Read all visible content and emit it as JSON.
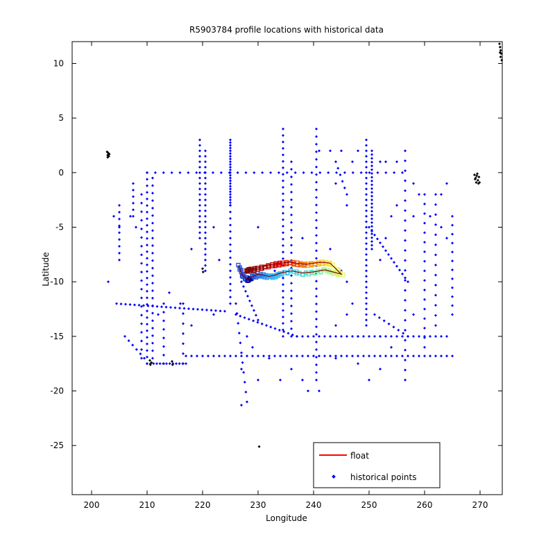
{
  "chart_data": {
    "type": "scatter",
    "title": "R5903784 profile locations with historical data",
    "xlabel": "Longitude",
    "ylabel": "Latitude",
    "xlim": [
      196.5,
      274
    ],
    "ylim": [
      -29.5,
      12
    ],
    "xticks": [
      200,
      210,
      220,
      230,
      240,
      250,
      260,
      270
    ],
    "yticks": [
      10,
      5,
      0,
      -5,
      -10,
      -15,
      -20,
      -25
    ],
    "grid": false,
    "legend": {
      "placement": "bottom-right",
      "entries": [
        {
          "label": "float",
          "color": "#ff0000",
          "marker": "line"
        },
        {
          "label": "historical points",
          "color": "#0000ff",
          "marker": "dot"
        }
      ]
    },
    "colors": {
      "historical": "#0000ff",
      "float_line": "#ff0000",
      "black_points": "#000000"
    },
    "historical_segments": [
      {
        "from": [
          210,
          -17.5
        ],
        "to": [
          210,
          0
        ],
        "step": 0.6
      },
      {
        "from": [
          209,
          -17
        ],
        "to": [
          209,
          -2
        ],
        "step": 0.8
      },
      {
        "from": [
          211,
          -17
        ],
        "to": [
          211,
          -0.5
        ],
        "step": 0.7
      },
      {
        "from": [
          210,
          0
        ],
        "to": [
          256,
          0
        ],
        "step": 1.5
      },
      {
        "from": [
          219.5,
          3
        ],
        "to": [
          219.5,
          -6
        ],
        "step": 0.5
      },
      {
        "from": [
          220.5,
          2
        ],
        "to": [
          220.5,
          -9
        ],
        "step": 0.5
      },
      {
        "from": [
          225,
          3
        ],
        "to": [
          225,
          -3
        ],
        "step": 0.25
      },
      {
        "from": [
          225,
          -3
        ],
        "to": [
          225,
          -12
        ],
        "step": 0.6
      },
      {
        "from": [
          234.5,
          4
        ],
        "to": [
          234.5,
          -15
        ],
        "step": 0.6
      },
      {
        "from": [
          236,
          1
        ],
        "to": [
          236,
          -15
        ],
        "step": 0.7
      },
      {
        "from": [
          240.5,
          4
        ],
        "to": [
          240.5,
          -19
        ],
        "step": 0.7
      },
      {
        "from": [
          249.5,
          3
        ],
        "to": [
          249.5,
          -14
        ],
        "step": 0.5
      },
      {
        "from": [
          250.5,
          2
        ],
        "to": [
          250.5,
          -7
        ],
        "step": 0.35
      },
      {
        "from": [
          256.5,
          2
        ],
        "to": [
          256.5,
          -19
        ],
        "step": 0.9
      },
      {
        "from": [
          260,
          -2
        ],
        "to": [
          260,
          -16
        ],
        "step": 0.9
      },
      {
        "from": [
          262,
          -2
        ],
        "to": [
          262,
          -14
        ],
        "step": 0.9
      },
      {
        "from": [
          265,
          -4
        ],
        "to": [
          265,
          -13
        ],
        "step": 0.8
      },
      {
        "from": [
          205,
          -3
        ],
        "to": [
          205,
          -8
        ],
        "step": 0.6
      },
      {
        "from": [
          207.5,
          -1
        ],
        "to": [
          207.5,
          -4
        ],
        "step": 0.6
      },
      {
        "from": [
          204.5,
          -12
        ],
        "to": [
          224,
          -12.7
        ],
        "step": 0.8
      },
      {
        "from": [
          213,
          -17.5
        ],
        "to": [
          213,
          -12
        ],
        "step": 0.8
      },
      {
        "from": [
          216.5,
          -17.5
        ],
        "to": [
          216.5,
          -12
        ],
        "step": 0.9
      },
      {
        "from": [
          210,
          -17.5
        ],
        "to": [
          217,
          -17.5
        ],
        "step": 0.6
      },
      {
        "from": [
          217,
          -16.8
        ],
        "to": [
          265,
          -16.8
        ],
        "step": 1.0
      },
      {
        "from": [
          237,
          -15
        ],
        "to": [
          264,
          -15
        ],
        "step": 1.0
      },
      {
        "from": [
          226,
          -13
        ],
        "to": [
          237,
          -15
        ],
        "step": 0.8
      },
      {
        "from": [
          227,
          -10
        ],
        "to": [
          230,
          -13.5
        ],
        "step": 0.6
      },
      {
        "from": [
          250,
          -5
        ],
        "to": [
          257,
          -10
        ],
        "step": 0.6
      },
      {
        "from": [
          226,
          -12
        ],
        "to": [
          228,
          -21
        ],
        "step": 0.9
      },
      {
        "from": [
          251,
          -13
        ],
        "to": [
          257,
          -15
        ],
        "step": 0.9
      },
      {
        "from": [
          206,
          -15
        ],
        "to": [
          209.5,
          -17
        ],
        "step": 0.8
      },
      {
        "from": [
          246,
          -2
        ],
        "to": [
          244,
          1
        ],
        "step": 0.8
      }
    ],
    "historical_scatter": [
      [
        230,
        -5
      ],
      [
        233,
        -9
      ],
      [
        238,
        -6
      ],
      [
        243,
        -7
      ],
      [
        245,
        -9
      ],
      [
        246,
        -10
      ],
      [
        247,
        -12
      ],
      [
        252,
        -8
      ],
      [
        253,
        -6
      ],
      [
        254,
        -4
      ],
      [
        255,
        -3
      ],
      [
        258,
        -1
      ],
      [
        259,
        -2
      ],
      [
        261,
        -4
      ],
      [
        263,
        -2
      ],
      [
        263,
        -5
      ],
      [
        264,
        -1
      ],
      [
        236,
        -18
      ],
      [
        238,
        -19
      ],
      [
        239,
        -20
      ],
      [
        234,
        -19
      ],
      [
        230,
        -19
      ],
      [
        232,
        -17
      ],
      [
        222,
        -5
      ],
      [
        223,
        -8
      ],
      [
        218,
        -7
      ],
      [
        216,
        -12
      ],
      [
        214,
        -11
      ],
      [
        212,
        -13
      ],
      [
        207,
        -4
      ],
      [
        208,
        -5
      ],
      [
        204,
        -4
      ],
      [
        205,
        -5
      ],
      [
        203,
        -10
      ],
      [
        227,
        -18
      ],
      [
        229,
        -16
      ],
      [
        246,
        -3
      ],
      [
        244,
        -1
      ],
      [
        241,
        2
      ],
      [
        243,
        2
      ],
      [
        245,
        2
      ],
      [
        247,
        1
      ],
      [
        248,
        2
      ],
      [
        252,
        1
      ],
      [
        253,
        1
      ],
      [
        255,
        1
      ],
      [
        244,
        -17
      ],
      [
        248,
        -17.5
      ],
      [
        252,
        -18
      ],
      [
        241,
        -20
      ],
      [
        250,
        -19
      ],
      [
        258,
        -4
      ],
      [
        264,
        -6
      ],
      [
        227,
        -21.3
      ],
      [
        218,
        -14
      ],
      [
        222,
        -13
      ],
      [
        228,
        -15
      ],
      [
        244,
        -14
      ],
      [
        246,
        -13
      ],
      [
        248,
        -15
      ],
      [
        252,
        -15
      ],
      [
        254,
        -16
      ],
      [
        258,
        -13
      ]
    ],
    "black_points": [
      [
        202.8,
        1.9
      ],
      [
        202.9,
        1.6
      ],
      [
        203,
        1.8
      ],
      [
        203.1,
        1.5
      ],
      [
        203.2,
        1.7
      ],
      [
        202.9,
        1.4
      ],
      [
        210.5,
        -17.2
      ],
      [
        210.6,
        -17.6
      ],
      [
        210.8,
        -17.4
      ],
      [
        214.5,
        -17.3
      ],
      [
        214.6,
        -17.6
      ],
      [
        220,
        -8.8
      ],
      [
        220.1,
        -9.1
      ],
      [
        230.2,
        -25.1
      ],
      [
        269,
        -0.2
      ],
      [
        269.2,
        -0.5
      ],
      [
        269.4,
        -0.3
      ],
      [
        269.6,
        -0.7
      ],
      [
        269.8,
        -0.4
      ],
      [
        269.3,
        -0.9
      ],
      [
        269.7,
        -1.0
      ],
      [
        269.5,
        -0.1
      ],
      [
        269.1,
        -0.6
      ],
      [
        269.9,
        -0.9
      ],
      [
        273.5,
        11.8
      ],
      [
        273.6,
        11.5
      ],
      [
        273.7,
        11.2
      ],
      [
        273.8,
        10.9
      ],
      [
        273.7,
        10.6
      ],
      [
        273.9,
        10.3
      ],
      [
        273.6,
        11.0
      ]
    ],
    "float_track": [
      {
        "lon": 226.5,
        "lat": -8.5,
        "color": "#1a4ad8"
      },
      {
        "lon": 227,
        "lat": -9.3,
        "color": "#1a4ad8"
      },
      {
        "lon": 228,
        "lat": -9.8,
        "color": "#00008c"
      },
      {
        "lon": 229,
        "lat": -9.5,
        "color": "#1a60e8"
      },
      {
        "lon": 230,
        "lat": -9.3,
        "color": "#2a7cf0"
      },
      {
        "lon": 231,
        "lat": -9.4,
        "color": "#2a9cf8"
      },
      {
        "lon": 232,
        "lat": -9.5,
        "color": "#34b4f8"
      },
      {
        "lon": 233,
        "lat": -9.4,
        "color": "#34bcf8"
      },
      {
        "lon": 234,
        "lat": -9.2,
        "color": "#40c8f0"
      },
      {
        "lon": 236,
        "lat": -9.0,
        "color": "#48d6e0"
      },
      {
        "lon": 238,
        "lat": -9.2,
        "color": "#5ee6c8"
      },
      {
        "lon": 240,
        "lat": -9.1,
        "color": "#7cf2a8"
      },
      {
        "lon": 242,
        "lat": -8.9,
        "color": "#a0f890"
      },
      {
        "lon": 243.5,
        "lat": -9.1,
        "color": "#c8fa78"
      },
      {
        "lon": 245,
        "lat": -9.3,
        "color": "#e8f860"
      },
      {
        "lon": 243,
        "lat": -8.3,
        "color": "#f8e448"
      },
      {
        "lon": 241.5,
        "lat": -8.2,
        "color": "#f8c030"
      },
      {
        "lon": 240,
        "lat": -8.3,
        "color": "#f89c20"
      },
      {
        "lon": 238.5,
        "lat": -8.4,
        "color": "#f87810"
      },
      {
        "lon": 237,
        "lat": -8.3,
        "color": "#f05008"
      },
      {
        "lon": 235.5,
        "lat": -8.2,
        "color": "#e82808"
      },
      {
        "lon": 234,
        "lat": -8.3,
        "color": "#d80000"
      },
      {
        "lon": 232.5,
        "lat": -8.4,
        "color": "#c00000"
      },
      {
        "lon": 231,
        "lat": -8.6,
        "color": "#a00000"
      },
      {
        "lon": 229.5,
        "lat": -8.8,
        "color": "#8a0000"
      },
      {
        "lon": 228,
        "lat": -8.9,
        "color": "#780000"
      }
    ]
  }
}
